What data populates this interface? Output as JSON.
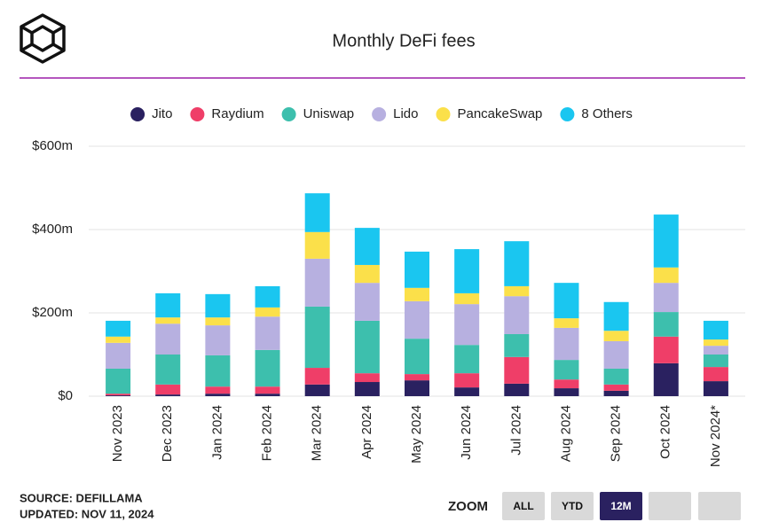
{
  "chart_data": {
    "type": "stacked-bar",
    "title": "Monthly DeFi fees",
    "categories": [
      "Nov 2023",
      "Dec 2023",
      "Jan 2024",
      "Feb 2024",
      "Mar 2024",
      "Apr 2024",
      "May 2024",
      "Jun 2024",
      "Jul 2024",
      "Aug 2024",
      "Sep 2024",
      "Oct 2024",
      "Nov 2024*"
    ],
    "series": [
      {
        "name": "Jito",
        "color": "#2a2160",
        "values": [
          2,
          4,
          6,
          6,
          28,
          34,
          38,
          21,
          30,
          19,
          13,
          79,
          36
        ]
      },
      {
        "name": "Raydium",
        "color": "#ef3e68",
        "values": [
          4,
          24,
          17,
          17,
          40,
          21,
          15,
          34,
          64,
          21,
          15,
          64,
          34
        ]
      },
      {
        "name": "Uniswap",
        "color": "#3dbfad",
        "values": [
          60,
          72,
          75,
          88,
          147,
          126,
          85,
          68,
          55,
          47,
          38,
          59,
          30
        ]
      },
      {
        "name": "Lido",
        "color": "#b7b0e0",
        "values": [
          62,
          74,
          72,
          80,
          115,
          91,
          90,
          98,
          91,
          77,
          66,
          70,
          21
        ]
      },
      {
        "name": "PancakeSwap",
        "color": "#fbe04a",
        "values": [
          15,
          15,
          19,
          22,
          64,
          43,
          32,
          26,
          24,
          23,
          25,
          37,
          15
        ]
      },
      {
        "name": "8 Others",
        "color": "#1ac6f0",
        "values": [
          38,
          58,
          56,
          51,
          93,
          89,
          87,
          106,
          108,
          85,
          69,
          127,
          45
        ]
      }
    ],
    "ylim": [
      0,
      600
    ],
    "yticks": [
      {
        "value": 0,
        "label": "$0"
      },
      {
        "value": 200,
        "label": "$200m"
      },
      {
        "value": 400,
        "label": "$400m"
      },
      {
        "value": 600,
        "label": "$600m"
      }
    ],
    "grid": true,
    "legend": "top"
  },
  "footer": {
    "source": "SOURCE: DEFILLAMA",
    "updated": "UPDATED: NOV 11, 2024"
  },
  "zoom": {
    "label": "ZOOM",
    "options": [
      "ALL",
      "YTD",
      "12M"
    ],
    "active": 2
  }
}
